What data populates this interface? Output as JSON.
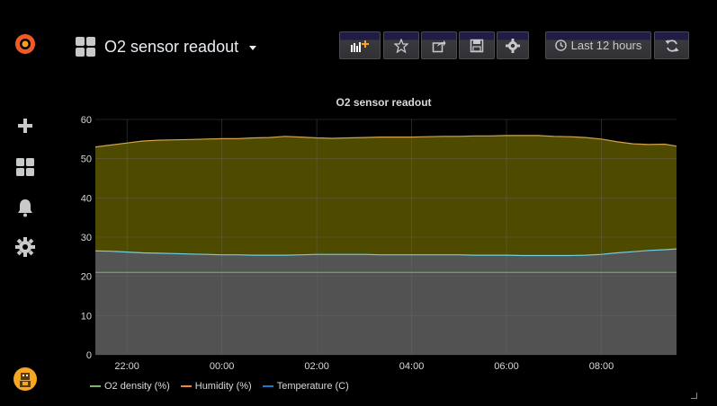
{
  "app": {
    "logo": "grafana-logo-icon"
  },
  "sidebar": {
    "items": [
      {
        "name": "create",
        "icon": "plus-icon"
      },
      {
        "name": "dashboards",
        "icon": "apps-grid-icon"
      },
      {
        "name": "alerting",
        "icon": "bell-icon"
      },
      {
        "name": "configuration",
        "icon": "gear-icon"
      }
    ],
    "user": {
      "icon": "user-avatar"
    }
  },
  "header": {
    "title": "O2 sensor readout",
    "buttons": {
      "add_panel": "add-panel-icon",
      "star": "star-icon",
      "share": "share-icon",
      "save": "save-icon",
      "settings": "gear-icon"
    },
    "time_range": "Last 12 hours",
    "refresh": "refresh-icon"
  },
  "panel": {
    "title": "O2 sensor readout"
  },
  "chart_data": {
    "type": "area",
    "title": "O2 sensor readout",
    "x": [
      "21:20",
      "21:40",
      "22:00",
      "22:20",
      "22:40",
      "23:00",
      "23:20",
      "23:40",
      "00:00",
      "00:20",
      "00:40",
      "01:00",
      "01:20",
      "01:40",
      "02:00",
      "02:20",
      "02:40",
      "03:00",
      "03:20",
      "03:40",
      "04:00",
      "04:20",
      "04:40",
      "05:00",
      "05:20",
      "05:40",
      "06:00",
      "06:20",
      "06:40",
      "07:00",
      "07:20",
      "07:40",
      "08:00",
      "08:20",
      "08:40",
      "09:00",
      "09:20",
      "09:35"
    ],
    "xticks": [
      "22:00",
      "00:00",
      "02:00",
      "04:00",
      "06:00",
      "08:00"
    ],
    "ylim": [
      0,
      60
    ],
    "yticks": [
      0,
      10,
      20,
      30,
      40,
      50,
      60
    ],
    "stacked": true,
    "grid": true,
    "legend_position": "bottom-left",
    "series": [
      {
        "name": "O2 density (%)",
        "color": "#7eb26d",
        "values": [
          21,
          21,
          21,
          21,
          21,
          21,
          21,
          21,
          21,
          21,
          21,
          21,
          21,
          21,
          21,
          21,
          21,
          21,
          21,
          21,
          21,
          21,
          21,
          21,
          21,
          21,
          21,
          21,
          21,
          21,
          21,
          21,
          21,
          21,
          21,
          21,
          21,
          21
        ]
      },
      {
        "name": "Humidity (%)",
        "color": "#eab839",
        "values": [
          26.5,
          26.4,
          26.2,
          26.0,
          25.9,
          25.8,
          25.7,
          25.6,
          25.5,
          25.5,
          25.4,
          25.4,
          25.4,
          25.5,
          25.6,
          25.6,
          25.6,
          25.6,
          25.5,
          25.5,
          25.5,
          25.5,
          25.5,
          25.5,
          25.4,
          25.4,
          25.4,
          25.3,
          25.3,
          25.3,
          25.3,
          25.4,
          25.6,
          26.0,
          26.3,
          26.6,
          26.8,
          27.0
        ]
      },
      {
        "name": "Temperature (C)",
        "color": "#6ed0e0",
        "values": [
          53,
          53.5,
          54,
          54.5,
          54.7,
          54.8,
          54.9,
          55.0,
          55.1,
          55.1,
          55.3,
          55.4,
          55.7,
          55.5,
          55.3,
          55.2,
          55.3,
          55.4,
          55.5,
          55.5,
          55.5,
          55.6,
          55.7,
          55.7,
          55.8,
          55.8,
          55.9,
          55.9,
          55.9,
          55.7,
          55.6,
          55.4,
          55.0,
          54.3,
          53.8,
          53.6,
          53.7,
          53.2
        ]
      }
    ]
  },
  "legend": [
    {
      "label": "O2 density (%)",
      "color": "#7eb26d"
    },
    {
      "label": "Humidity (%)",
      "color": "#ef843c"
    },
    {
      "label": "Temperature (C)",
      "color": "#1f78c1"
    }
  ]
}
